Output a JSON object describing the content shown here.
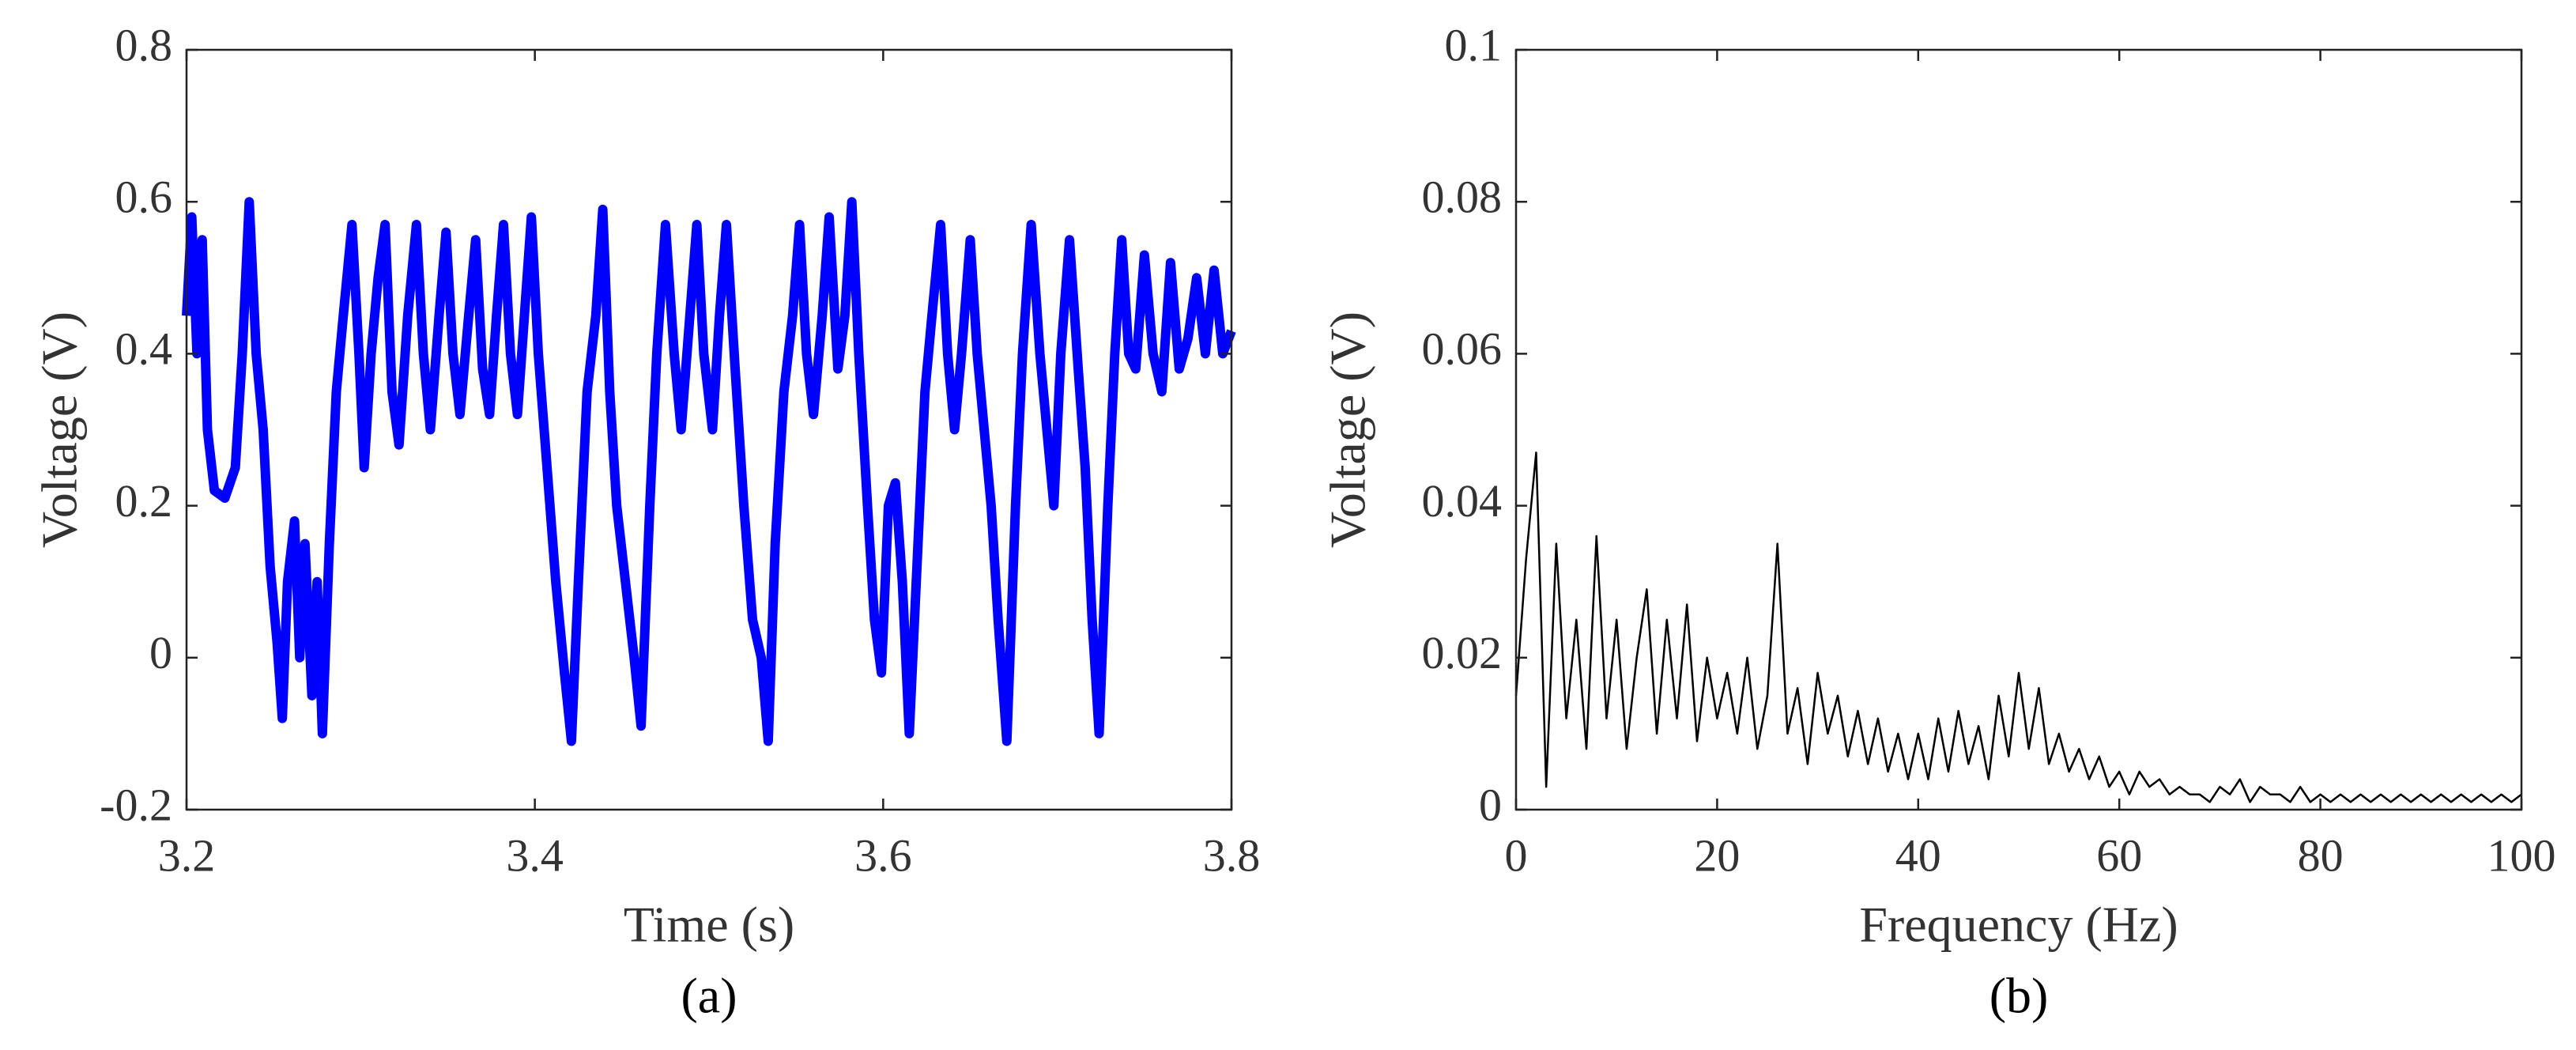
{
  "chart_data": [
    {
      "type": "line",
      "caption": "(a)",
      "xlabel": "Time (s)",
      "ylabel": "Voltage (V)",
      "xlim": [
        3.2,
        3.8
      ],
      "xticks": [
        3.2,
        3.4,
        3.6,
        3.8
      ],
      "ylim": [
        -0.2,
        0.8
      ],
      "yticks": [
        -0.2,
        0,
        0.2,
        0.4,
        0.6,
        0.8
      ],
      "series": [
        {
          "color": "#0000ff",
          "x": [
            3.2,
            3.203,
            3.206,
            3.209,
            3.212,
            3.216,
            3.222,
            3.228,
            3.232,
            3.236,
            3.24,
            3.244,
            3.248,
            3.252,
            3.255,
            3.258,
            3.262,
            3.265,
            3.268,
            3.272,
            3.275,
            3.278,
            3.282,
            3.286,
            3.29,
            3.295,
            3.299,
            3.302,
            3.306,
            3.31,
            3.314,
            3.318,
            3.322,
            3.327,
            3.332,
            3.336,
            3.34,
            3.345,
            3.349,
            3.353,
            3.357,
            3.362,
            3.366,
            3.37,
            3.374,
            3.378,
            3.382,
            3.386,
            3.39,
            3.394,
            3.398,
            3.402,
            3.407,
            3.412,
            3.417,
            3.421,
            3.425,
            3.43,
            3.435,
            3.439,
            3.443,
            3.447,
            3.452,
            3.457,
            3.461,
            3.466,
            3.47,
            3.475,
            3.48,
            3.484,
            3.489,
            3.493,
            3.497,
            3.502,
            3.506,
            3.51,
            3.515,
            3.52,
            3.525,
            3.53,
            3.534,
            3.538,
            3.543,
            3.548,
            3.552,
            3.556,
            3.56,
            3.565,
            3.569,
            3.574,
            3.578,
            3.582,
            3.586,
            3.591,
            3.595,
            3.599,
            3.603,
            3.607,
            3.611,
            3.615,
            3.619,
            3.624,
            3.628,
            3.633,
            3.637,
            3.641,
            3.645,
            3.65,
            3.654,
            3.658,
            3.662,
            3.666,
            3.671,
            3.676,
            3.68,
            3.685,
            3.69,
            3.694,
            3.698,
            3.702,
            3.707,
            3.712,
            3.716,
            3.72,
            3.724,
            3.729,
            3.733,
            3.737,
            3.741,
            3.745,
            3.75,
            3.755,
            3.76,
            3.765,
            3.77,
            3.775,
            3.78,
            3.785,
            3.79,
            3.795,
            3.8
          ],
          "values": [
            0.45,
            0.58,
            0.4,
            0.55,
            0.3,
            0.22,
            0.21,
            0.25,
            0.4,
            0.6,
            0.4,
            0.3,
            0.12,
            0.02,
            -0.08,
            0.1,
            0.18,
            0.0,
            0.15,
            -0.05,
            0.1,
            -0.1,
            0.15,
            0.35,
            0.45,
            0.57,
            0.4,
            0.25,
            0.4,
            0.5,
            0.57,
            0.35,
            0.28,
            0.45,
            0.57,
            0.4,
            0.3,
            0.45,
            0.56,
            0.4,
            0.32,
            0.45,
            0.55,
            0.38,
            0.32,
            0.45,
            0.57,
            0.4,
            0.32,
            0.45,
            0.58,
            0.4,
            0.25,
            0.1,
            -0.02,
            -0.11,
            0.1,
            0.35,
            0.45,
            0.59,
            0.35,
            0.2,
            0.1,
            0.0,
            -0.09,
            0.2,
            0.4,
            0.57,
            0.4,
            0.3,
            0.45,
            0.57,
            0.4,
            0.3,
            0.45,
            0.57,
            0.38,
            0.2,
            0.05,
            0.0,
            -0.11,
            0.15,
            0.35,
            0.45,
            0.57,
            0.4,
            0.32,
            0.45,
            0.58,
            0.38,
            0.45,
            0.6,
            0.4,
            0.2,
            0.05,
            -0.02,
            0.2,
            0.23,
            0.1,
            -0.1,
            0.1,
            0.35,
            0.45,
            0.57,
            0.4,
            0.3,
            0.4,
            0.55,
            0.4,
            0.3,
            0.2,
            0.05,
            -0.11,
            0.2,
            0.4,
            0.57,
            0.4,
            0.3,
            0.2,
            0.4,
            0.55,
            0.38,
            0.25,
            0.05,
            -0.1,
            0.2,
            0.4,
            0.55,
            0.4,
            0.38,
            0.53,
            0.4,
            0.35,
            0.52,
            0.38,
            0.42,
            0.5,
            0.4,
            0.51,
            0.4,
            0.43
          ]
        }
      ]
    },
    {
      "type": "line",
      "caption": "(b)",
      "xlabel": "Frequency (Hz)",
      "ylabel": "Voltage (V)",
      "xlim": [
        0,
        100
      ],
      "xticks": [
        0,
        20,
        40,
        60,
        80,
        100
      ],
      "ylim": [
        0,
        0.1
      ],
      "yticks": [
        0,
        0.02,
        0.04,
        0.06,
        0.08,
        0.1
      ],
      "series": [
        {
          "color": "#000000",
          "x": [
            0,
            1,
            2,
            3,
            4,
            5,
            6,
            7,
            8,
            9,
            10,
            11,
            12,
            13,
            14,
            15,
            16,
            17,
            18,
            19,
            20,
            21,
            22,
            23,
            24,
            25,
            26,
            27,
            28,
            29,
            30,
            31,
            32,
            33,
            34,
            35,
            36,
            37,
            38,
            39,
            40,
            41,
            42,
            43,
            44,
            45,
            46,
            47,
            48,
            49,
            50,
            51,
            52,
            53,
            54,
            55,
            56,
            57,
            58,
            59,
            60,
            61,
            62,
            63,
            64,
            65,
            66,
            67,
            68,
            69,
            70,
            71,
            72,
            73,
            74,
            75,
            76,
            77,
            78,
            79,
            80,
            81,
            82,
            83,
            84,
            85,
            86,
            87,
            88,
            89,
            90,
            91,
            92,
            93,
            94,
            95,
            96,
            97,
            98,
            99,
            100
          ],
          "values": [
            0.015,
            0.033,
            0.047,
            0.003,
            0.035,
            0.012,
            0.025,
            0.008,
            0.036,
            0.012,
            0.025,
            0.008,
            0.02,
            0.029,
            0.01,
            0.025,
            0.012,
            0.027,
            0.009,
            0.02,
            0.012,
            0.018,
            0.01,
            0.02,
            0.008,
            0.015,
            0.035,
            0.01,
            0.016,
            0.006,
            0.018,
            0.01,
            0.015,
            0.007,
            0.013,
            0.006,
            0.012,
            0.005,
            0.01,
            0.004,
            0.01,
            0.004,
            0.012,
            0.005,
            0.013,
            0.006,
            0.011,
            0.004,
            0.015,
            0.007,
            0.018,
            0.008,
            0.016,
            0.006,
            0.01,
            0.005,
            0.008,
            0.004,
            0.007,
            0.003,
            0.005,
            0.002,
            0.005,
            0.003,
            0.004,
            0.002,
            0.003,
            0.002,
            0.002,
            0.001,
            0.003,
            0.002,
            0.004,
            0.001,
            0.003,
            0.002,
            0.002,
            0.001,
            0.003,
            0.001,
            0.002,
            0.001,
            0.002,
            0.001,
            0.002,
            0.001,
            0.002,
            0.001,
            0.002,
            0.001,
            0.002,
            0.001,
            0.002,
            0.001,
            0.002,
            0.001,
            0.002,
            0.001,
            0.002,
            0.001,
            0.002
          ]
        }
      ]
    }
  ]
}
